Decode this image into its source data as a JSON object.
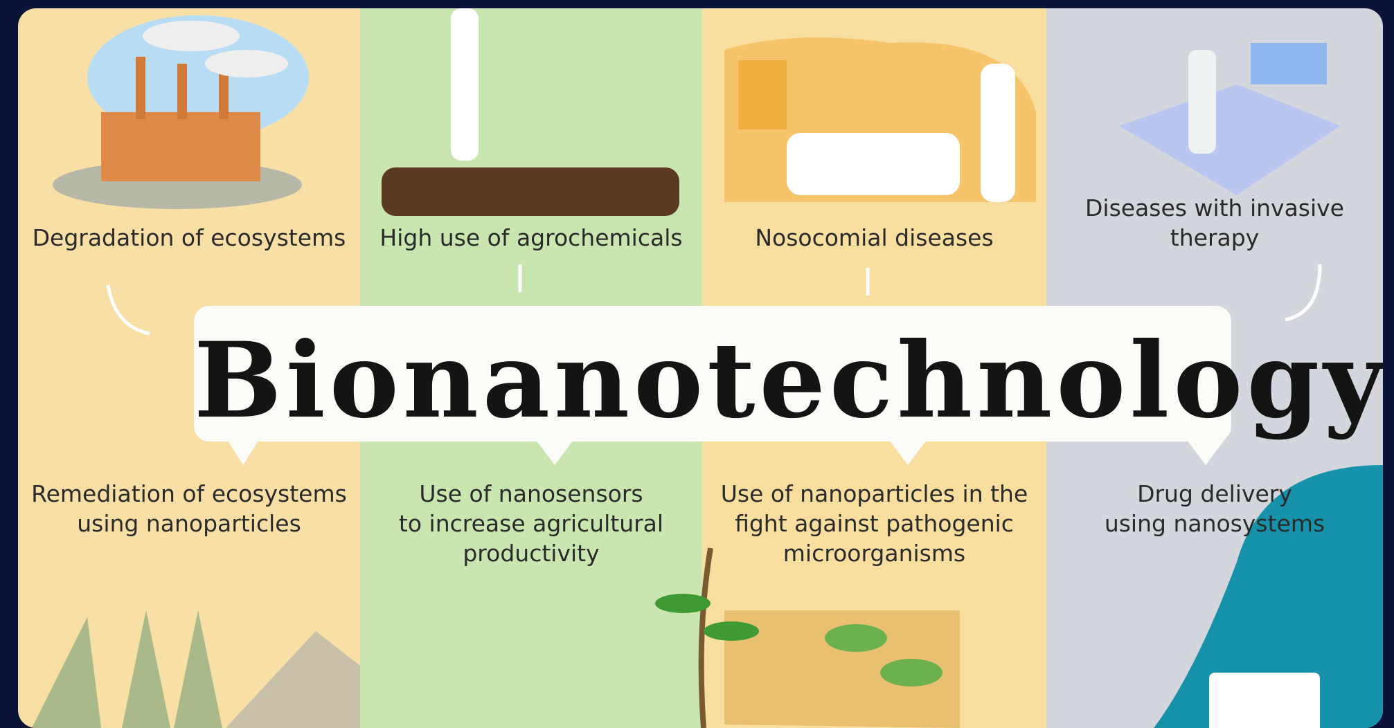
{
  "title": "Bionanotechnology",
  "columns": [
    {
      "problem": [
        "Degradation of ecosystems"
      ],
      "solution": [
        "Remediation of ecosystems",
        "using nanoparticles"
      ]
    },
    {
      "problem": [
        "High use of agrochemicals"
      ],
      "solution": [
        "Use of nanosensors",
        "to increase agricultural",
        "productivity"
      ]
    },
    {
      "problem": [
        "Nosocomial diseases"
      ],
      "solution": [
        "Use of nanoparticles in the",
        "fight against pathogenic",
        "microorganisms"
      ]
    },
    {
      "problem": [
        "Diseases with invasive",
        "therapy"
      ],
      "solution": [
        "Drug delivery",
        "using nanosystems"
      ]
    }
  ]
}
